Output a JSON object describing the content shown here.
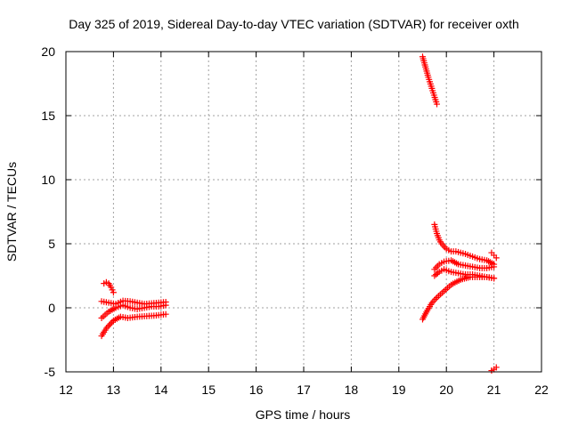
{
  "chart_data": {
    "type": "scatter",
    "title": "Day 325 of 2019, Sidereal Day-to-day VTEC variation (SDTVAR) for receiver oxth",
    "xlabel": "GPS time / hours",
    "ylabel": "SDTVAR / TECUs",
    "xlim": [
      12,
      22
    ],
    "ylim": [
      -5,
      20
    ],
    "xticks": [
      12,
      13,
      14,
      15,
      16,
      17,
      18,
      19,
      20,
      21,
      22
    ],
    "yticks": [
      -5,
      0,
      5,
      10,
      15,
      20
    ],
    "xtick_labels": [
      "12",
      "13",
      "14",
      "15",
      "16",
      "17",
      "18",
      "19",
      "20",
      "21",
      "22"
    ],
    "ytick_labels": [
      "-5",
      "0",
      "5",
      "10",
      "15",
      "20"
    ],
    "grid": true,
    "marker": "plus",
    "marker_color": "#ff0000",
    "series": [
      {
        "name": "arc-a-top",
        "x": [
          12.8,
          12.85,
          12.9,
          12.95,
          13.0
        ],
        "y": [
          1.9,
          2.0,
          1.9,
          1.6,
          1.2
        ]
      },
      {
        "name": "arc-a-1",
        "x": [
          12.75,
          12.9,
          13.05,
          13.2,
          13.35,
          13.5,
          13.65,
          13.8,
          13.95,
          14.1
        ],
        "y": [
          0.5,
          0.4,
          0.3,
          0.55,
          0.5,
          0.4,
          0.3,
          0.35,
          0.4,
          0.45
        ]
      },
      {
        "name": "arc-a-2",
        "x": [
          12.75,
          12.9,
          13.05,
          13.2,
          13.35,
          13.5,
          13.65,
          13.8,
          13.95,
          14.1
        ],
        "y": [
          -0.8,
          -0.3,
          0.0,
          0.2,
          0.0,
          -0.1,
          0.0,
          0.1,
          0.1,
          0.2
        ]
      },
      {
        "name": "arc-a-3",
        "x": [
          12.75,
          12.85,
          13.0,
          13.15,
          13.3,
          13.5,
          13.7,
          13.9,
          14.1
        ],
        "y": [
          -2.2,
          -1.6,
          -1.0,
          -0.7,
          -0.8,
          -0.7,
          -0.65,
          -0.6,
          -0.5
        ]
      },
      {
        "name": "arc-b",
        "x": [
          19.5,
          19.56,
          19.62,
          19.68,
          19.74,
          19.8
        ],
        "y": [
          19.6,
          18.8,
          18.0,
          17.3,
          16.6,
          15.9
        ]
      },
      {
        "name": "arc-c-top",
        "x": [
          19.75,
          19.8,
          19.85,
          19.9,
          20.0,
          20.1,
          20.2,
          20.3,
          20.4,
          20.55,
          20.7,
          20.85,
          21.0
        ],
        "y": [
          6.5,
          5.8,
          5.3,
          5.0,
          4.6,
          4.4,
          4.4,
          4.3,
          4.2,
          4.0,
          3.8,
          3.7,
          3.4
        ]
      },
      {
        "name": "arc-c-2",
        "x": [
          19.75,
          19.85,
          19.95,
          20.1,
          20.25,
          20.4,
          20.55,
          20.7,
          20.85,
          21.0
        ],
        "y": [
          3.0,
          3.4,
          3.6,
          3.7,
          3.4,
          3.3,
          3.2,
          3.1,
          3.1,
          3.2
        ]
      },
      {
        "name": "arc-c-3",
        "x": [
          19.75,
          19.85,
          19.95,
          20.1,
          20.25,
          20.4,
          20.55,
          20.7,
          20.85,
          21.0
        ],
        "y": [
          2.5,
          2.8,
          3.0,
          2.8,
          2.7,
          2.6,
          2.6,
          2.5,
          2.4,
          2.3
        ]
      },
      {
        "name": "arc-c-4",
        "x": [
          19.5,
          19.6,
          19.7,
          19.8,
          19.95,
          20.1,
          20.3,
          20.5,
          20.7,
          20.85,
          21.0
        ],
        "y": [
          -0.9,
          -0.2,
          0.4,
          0.8,
          1.3,
          1.8,
          2.2,
          2.4,
          2.4,
          2.4,
          2.3
        ]
      },
      {
        "name": "arc-c-5",
        "x": [
          20.95,
          21.0,
          21.05
        ],
        "y": [
          4.3,
          4.1,
          3.9
        ]
      },
      {
        "name": "arc-d",
        "x": [
          20.95,
          21.0,
          21.05
        ],
        "y": [
          -4.9,
          -4.8,
          -4.65
        ]
      }
    ]
  }
}
